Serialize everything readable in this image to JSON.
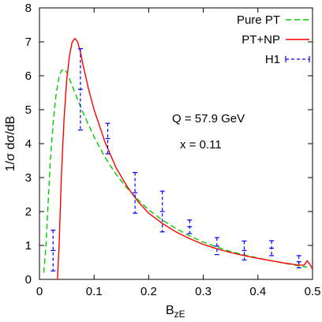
{
  "chart_data": {
    "type": "line",
    "xlabel": "B",
    "xlabel_sub": "zE",
    "ylabel": "1/σ dσ/dB",
    "xlim": [
      0,
      0.5
    ],
    "ylim": [
      0,
      8
    ],
    "x_ticks": [
      "0",
      "0.1",
      "0.2",
      "0.3",
      "0.4",
      "0.5"
    ],
    "y_ticks": [
      "0",
      "1",
      "2",
      "3",
      "4",
      "5",
      "6",
      "7",
      "8"
    ],
    "legend_position": "top-right",
    "annotations": [
      "Q = 57.9 GeV",
      "x = 0.11"
    ],
    "series": [
      {
        "name": "Pure PT",
        "color": "#00cc00",
        "style": "dashed",
        "x": [
          0.008,
          0.012,
          0.016,
          0.02,
          0.025,
          0.03,
          0.035,
          0.04,
          0.045,
          0.05,
          0.055,
          0.06,
          0.07,
          0.08,
          0.09,
          0.1,
          0.12,
          0.14,
          0.16,
          0.18,
          0.2,
          0.225,
          0.25,
          0.275,
          0.3,
          0.325,
          0.35,
          0.375,
          0.4,
          0.425,
          0.45,
          0.475,
          0.49
        ],
        "values": [
          0.2,
          1.0,
          2.3,
          3.5,
          4.6,
          5.4,
          5.9,
          6.15,
          6.2,
          6.1,
          5.9,
          5.7,
          5.3,
          4.9,
          4.55,
          4.2,
          3.6,
          3.1,
          2.7,
          2.35,
          2.05,
          1.75,
          1.5,
          1.28,
          1.1,
          0.95,
          0.82,
          0.72,
          0.63,
          0.55,
          0.47,
          0.4,
          0.36
        ]
      },
      {
        "name": "PT+NP",
        "color": "#ff0000",
        "style": "solid",
        "x": [
          0.033,
          0.036,
          0.038,
          0.04,
          0.045,
          0.05,
          0.055,
          0.06,
          0.065,
          0.07,
          0.075,
          0.08,
          0.09,
          0.1,
          0.12,
          0.14,
          0.16,
          0.18,
          0.2,
          0.225,
          0.25,
          0.275,
          0.3,
          0.325,
          0.35,
          0.375,
          0.4,
          0.425,
          0.45,
          0.475,
          0.485,
          0.49,
          0.495,
          0.5
        ],
        "values": [
          0.0,
          1.0,
          2.0,
          3.0,
          4.7,
          5.9,
          6.6,
          7.0,
          7.1,
          7.0,
          6.7,
          6.3,
          5.6,
          5.0,
          4.05,
          3.3,
          2.75,
          2.3,
          1.95,
          1.65,
          1.4,
          1.2,
          1.03,
          0.9,
          0.79,
          0.7,
          0.62,
          0.55,
          0.48,
          0.42,
          0.42,
          0.55,
          0.45,
          0.3
        ]
      },
      {
        "name": "H1",
        "color": "#0000ff",
        "style": "errorbars",
        "x": [
          0.025,
          0.075,
          0.125,
          0.175,
          0.225,
          0.275,
          0.325,
          0.375,
          0.425,
          0.475
        ],
        "values": [
          0.85,
          5.6,
          4.15,
          2.55,
          2.0,
          1.55,
          0.98,
          0.85,
          0.92,
          0.52
        ],
        "errors": [
          0.6,
          1.2,
          0.45,
          0.6,
          0.6,
          0.2,
          0.25,
          0.28,
          0.22,
          0.18
        ]
      }
    ]
  }
}
